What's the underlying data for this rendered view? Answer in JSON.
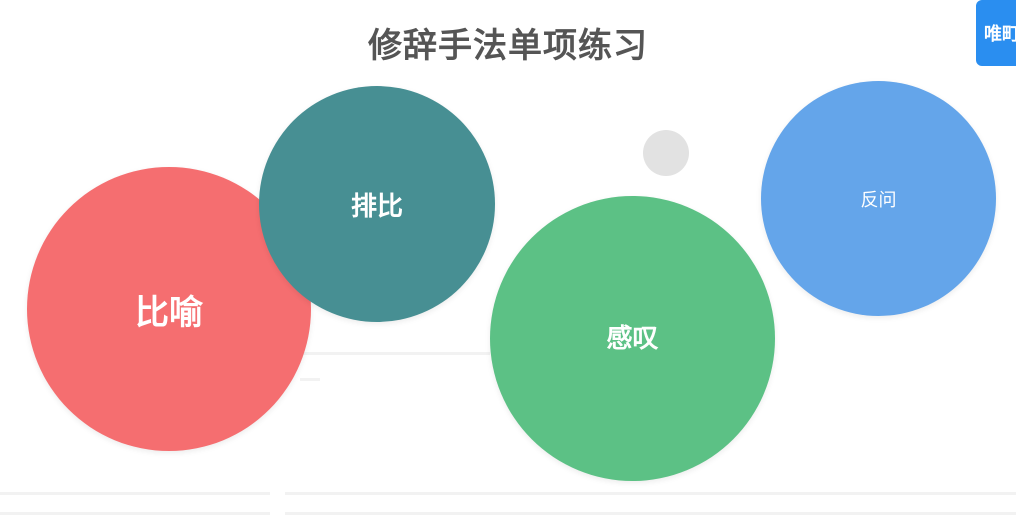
{
  "page": {
    "title": "修辞手法单项练习"
  },
  "badge": {
    "label": "唯町"
  },
  "bubbles": [
    {
      "label": "比喻",
      "color": "#f56e70"
    },
    {
      "label": "排比",
      "color": "#478f93"
    },
    {
      "label": "感叹",
      "color": "#5cc185"
    },
    {
      "label": "反问",
      "color": "#64a5ea"
    }
  ],
  "colors": {
    "title_text": "#555555",
    "badge_bg": "#2a8ef0",
    "dot": "#e2e2e2"
  }
}
